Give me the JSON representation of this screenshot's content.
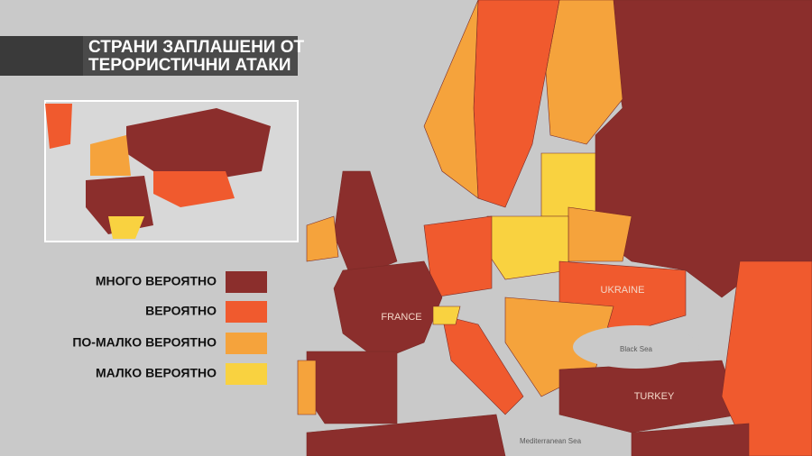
{
  "header": {
    "title_lines": [
      "СТРАНИ ЗАПЛАШЕНИ ОТ",
      "ТЕРОРИСТИЧНИ АТАКИ"
    ]
  },
  "legend": [
    {
      "label": "МНОГО ВЕРОЯТНО",
      "color": "#8b2e2c"
    },
    {
      "label": "ВЕРОЯТНО",
      "color": "#f05a2e"
    },
    {
      "label": "ПО-МАЛКО ВЕРОЯТНО",
      "color": "#f5a33c"
    },
    {
      "label": "МАЛКО ВЕРОЯТНО",
      "color": "#f9d240"
    }
  ],
  "map_labels": {
    "countries": [
      "FRANCE",
      "UKRAINE",
      "TURKEY"
    ],
    "seas": [
      "Black Sea",
      "Mediterranean Sea"
    ]
  }
}
